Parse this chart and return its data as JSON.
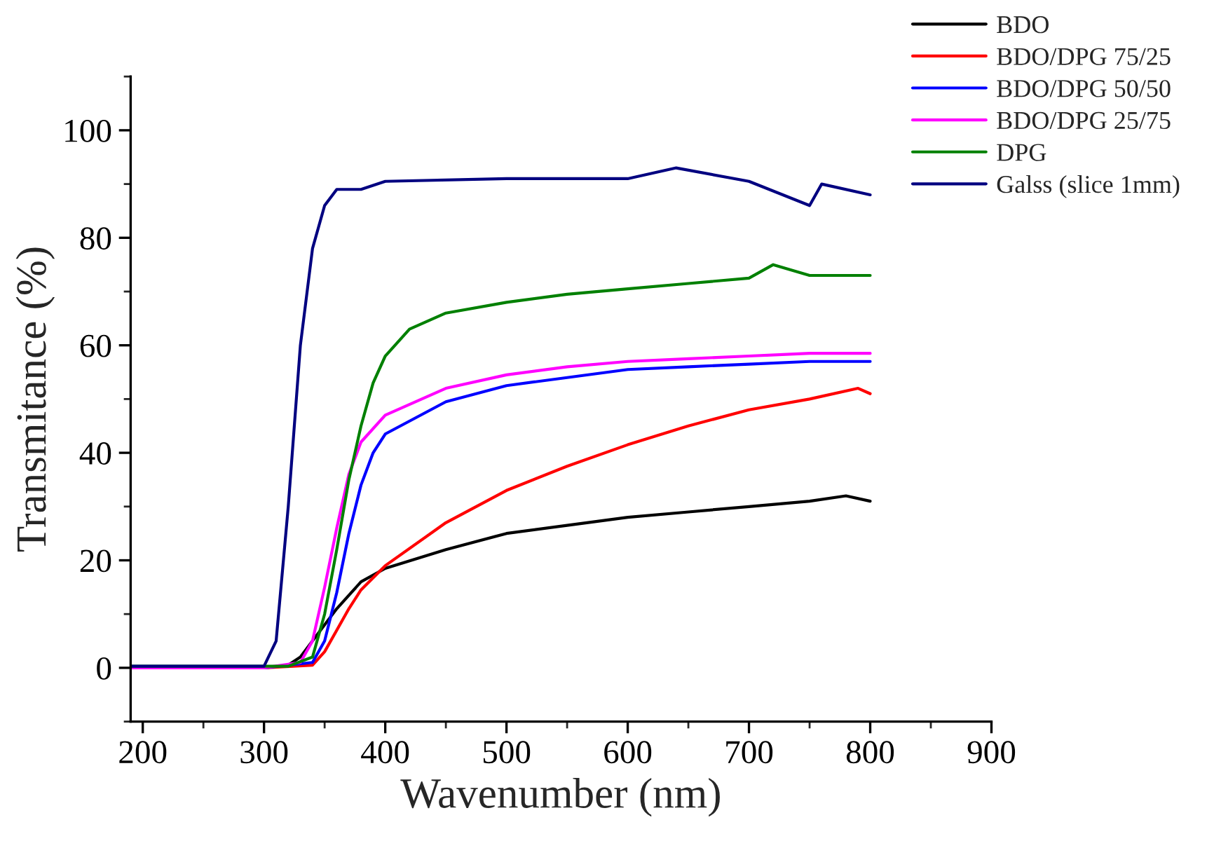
{
  "chart_data": {
    "type": "line",
    "xlabel": "Wavenumber (nm)",
    "ylabel": "Transmitance (%)",
    "xlim": [
      190,
      900
    ],
    "ylim": [
      -10,
      110
    ],
    "xticks": [
      200,
      300,
      400,
      500,
      600,
      700,
      800,
      900
    ],
    "yticks": [
      0,
      20,
      40,
      60,
      80,
      100
    ],
    "grid": false,
    "legend": "top right",
    "marker": "none",
    "line_style": "solid",
    "series": [
      {
        "name": "BDO",
        "color": "#000000",
        "x": [
          190,
          300,
          320,
          330,
          340,
          350,
          360,
          370,
          380,
          400,
          450,
          500,
          550,
          600,
          650,
          700,
          750,
          780,
          800
        ],
        "values": [
          0,
          0,
          0.5,
          2,
          5,
          8,
          11,
          13.5,
          16,
          18.5,
          22,
          25,
          26.5,
          28,
          29,
          30,
          31,
          32,
          31
        ]
      },
      {
        "name": "BDO/DPG 75/25",
        "color": "#ff0000",
        "x": [
          190,
          300,
          340,
          350,
          360,
          370,
          380,
          400,
          450,
          500,
          550,
          600,
          650,
          700,
          750,
          790,
          800
        ],
        "values": [
          0,
          0,
          0.5,
          3,
          7,
          11,
          14.5,
          19,
          27,
          33,
          37.5,
          41.5,
          45,
          48,
          50,
          52,
          51
        ]
      },
      {
        "name": "BDO/DPG 50/50",
        "color": "#0000ff",
        "x": [
          190,
          300,
          340,
          350,
          360,
          370,
          380,
          390,
          400,
          450,
          500,
          550,
          600,
          650,
          700,
          750,
          800
        ],
        "values": [
          0,
          0,
          1,
          5,
          14,
          25,
          34,
          40,
          43.5,
          49.5,
          52.5,
          54,
          55.5,
          56,
          56.5,
          57,
          57
        ]
      },
      {
        "name": "BDO/DPG 25/75",
        "color": "#ff00ff",
        "x": [
          190,
          300,
          330,
          340,
          350,
          360,
          370,
          380,
          400,
          450,
          500,
          550,
          600,
          650,
          700,
          750,
          800
        ],
        "values": [
          0,
          0,
          1,
          5,
          15,
          26,
          36,
          42,
          47,
          52,
          54.5,
          56,
          57,
          57.5,
          58,
          58.5,
          58.5
        ]
      },
      {
        "name": "DPG",
        "color": "#008000",
        "x": [
          190,
          300,
          320,
          340,
          350,
          360,
          370,
          380,
          390,
          400,
          420,
          450,
          500,
          550,
          600,
          650,
          700,
          720,
          750,
          800
        ],
        "values": [
          0.3,
          0.3,
          0.3,
          2,
          10,
          22,
          35,
          45,
          53,
          58,
          63,
          66,
          68,
          69.5,
          70.5,
          71.5,
          72.5,
          75,
          73,
          73
        ]
      },
      {
        "name": "Galss (slice 1mm)",
        "color": "#000080",
        "x": [
          190,
          300,
          310,
          320,
          330,
          340,
          350,
          360,
          380,
          400,
          500,
          600,
          640,
          700,
          750,
          760,
          800
        ],
        "values": [
          0.3,
          0.3,
          5,
          30,
          60,
          78,
          86,
          89,
          89,
          90.5,
          91,
          91,
          93,
          90.5,
          86,
          90,
          88
        ]
      }
    ]
  }
}
